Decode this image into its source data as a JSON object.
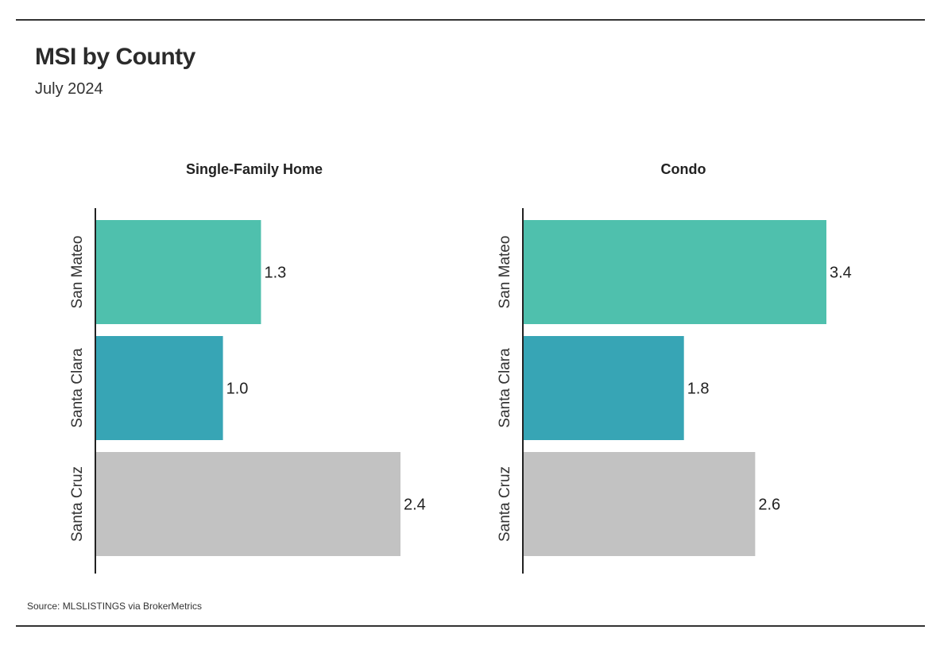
{
  "header": {
    "title": "MSI by County",
    "subtitle": "July 2024"
  },
  "footer": {
    "source": "Source:  MLSLISTINGS via BrokerMetrics"
  },
  "colors": {
    "San Mateo": "#4fc0ad",
    "Santa Clara": "#37a5b5",
    "Santa Cruz": "#c2c2c2"
  },
  "chart_data": [
    {
      "type": "bar",
      "orientation": "horizontal",
      "title": "Single-Family Home",
      "categories": [
        "San Mateo",
        "Santa Clara",
        "Santa Cruz"
      ],
      "values": [
        1.3,
        1.0,
        2.4
      ],
      "value_labels": [
        "1.3",
        "1.0",
        "2.4"
      ],
      "xlim": [
        0,
        2.4
      ],
      "grid": false,
      "xlabel": "",
      "ylabel": ""
    },
    {
      "type": "bar",
      "orientation": "horizontal",
      "title": "Condo",
      "categories": [
        "San Mateo",
        "Santa Clara",
        "Santa Cruz"
      ],
      "values": [
        3.4,
        1.8,
        2.6
      ],
      "value_labels": [
        "3.4",
        "1.8",
        "2.6"
      ],
      "xlim": [
        0,
        3.4
      ],
      "grid": false,
      "xlabel": "",
      "ylabel": ""
    }
  ]
}
